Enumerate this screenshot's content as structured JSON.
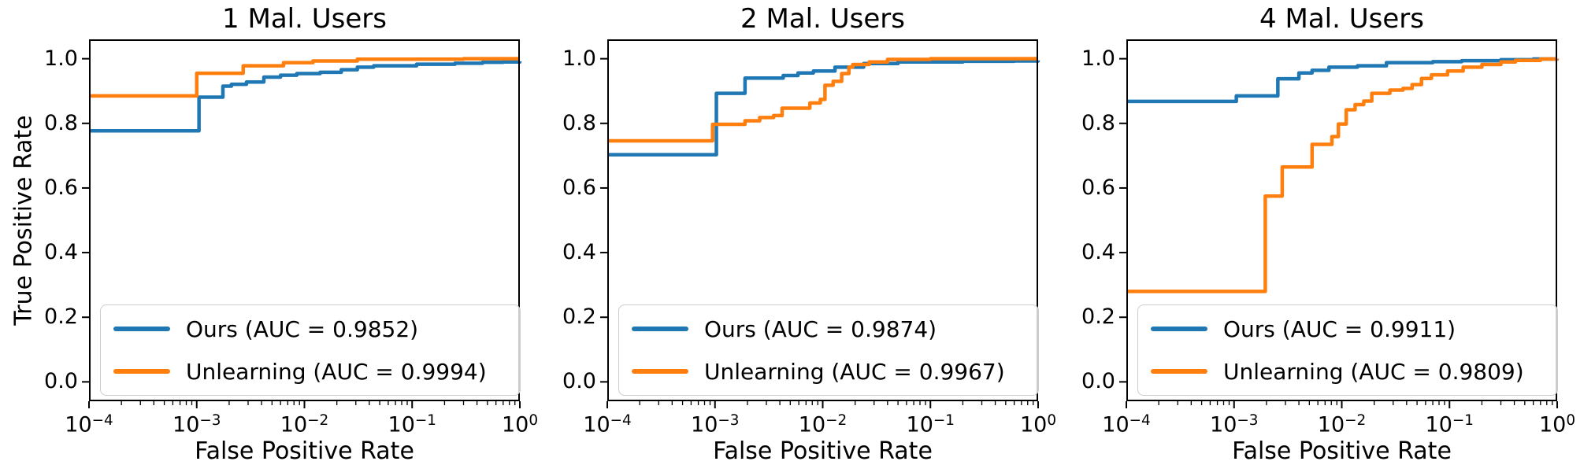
{
  "figure": {
    "ylabel": "True Positive Rate",
    "background_color": "#ffffff",
    "text_color": "#000000",
    "accent_colors": {
      "ours": "#1f77b4",
      "unlearning": "#ff7f0e"
    }
  },
  "chart_data": [
    {
      "type": "line",
      "title": "1 Mal. Users",
      "xlabel": "False Positive Rate",
      "ylabel": "True Positive Rate",
      "xscale": "log",
      "xlim": [
        0.0001,
        1.0
      ],
      "ylim": [
        -0.06,
        1.06
      ],
      "xtick_labels": [
        "10^-4",
        "10^-3",
        "10^-2",
        "10^-1",
        "10^0"
      ],
      "ytick_labels": [
        "1.0",
        "0.8",
        "0.6",
        "0.4",
        "0.2",
        "0.0"
      ],
      "grid": false,
      "legend_position": "lower left",
      "series": [
        {
          "name": "Ours (AUC = 0.9852)",
          "auc": 0.9852,
          "color": "#1f77b4",
          "points": [
            [
              0.0001,
              0.777
            ],
            [
              0.00105,
              0.881
            ],
            [
              0.00175,
              0.915
            ],
            [
              0.0021,
              0.921
            ],
            [
              0.0029,
              0.928
            ],
            [
              0.0042,
              0.943
            ],
            [
              0.006,
              0.949
            ],
            [
              0.0085,
              0.954
            ],
            [
              0.014,
              0.958
            ],
            [
              0.022,
              0.966
            ],
            [
              0.031,
              0.974
            ],
            [
              0.044,
              0.978
            ],
            [
              0.11,
              0.983
            ],
            [
              0.25,
              0.986
            ],
            [
              0.45,
              0.989
            ],
            [
              0.7,
              0.99
            ],
            [
              1.0,
              0.992
            ]
          ]
        },
        {
          "name": "Unlearning (AUC = 0.9994)",
          "auc": 0.9994,
          "color": "#ff7f0e",
          "points": [
            [
              0.0001,
              0.885
            ],
            [
              0.001,
              0.955
            ],
            [
              0.0027,
              0.978
            ],
            [
              0.0064,
              0.988
            ],
            [
              0.012,
              0.993
            ],
            [
              0.031,
              0.9985
            ],
            [
              0.3,
              1.0
            ],
            [
              1.0,
              1.0
            ]
          ]
        }
      ]
    },
    {
      "type": "line",
      "title": "2 Mal. Users",
      "xlabel": "False Positive Rate",
      "ylabel": "",
      "xscale": "log",
      "xlim": [
        0.0001,
        1.0
      ],
      "ylim": [
        -0.06,
        1.06
      ],
      "xtick_labels": [
        "10^-4",
        "10^-3",
        "10^-2",
        "10^-1",
        "10^0"
      ],
      "ytick_labels": [
        "1.0",
        "0.8",
        "0.6",
        "0.4",
        "0.2",
        "0.0"
      ],
      "grid": false,
      "legend_position": "lower left",
      "series": [
        {
          "name": "Ours (AUC = 0.9874)",
          "auc": 0.9874,
          "color": "#1f77b4",
          "points": [
            [
              0.0001,
              0.703
            ],
            [
              0.00103,
              0.893
            ],
            [
              0.0019,
              0.94
            ],
            [
              0.0043,
              0.948
            ],
            [
              0.0059,
              0.956
            ],
            [
              0.0082,
              0.962
            ],
            [
              0.013,
              0.974
            ],
            [
              0.024,
              0.985
            ],
            [
              0.05,
              0.99
            ],
            [
              0.2,
              0.992
            ],
            [
              0.6,
              0.993
            ],
            [
              1.0,
              0.995
            ]
          ]
        },
        {
          "name": "Unlearning (AUC = 0.9967)",
          "auc": 0.9967,
          "color": "#ff7f0e",
          "points": [
            [
              0.0001,
              0.746
            ],
            [
              0.00095,
              0.797
            ],
            [
              0.0019,
              0.808
            ],
            [
              0.0026,
              0.818
            ],
            [
              0.0035,
              0.824
            ],
            [
              0.0042,
              0.847
            ],
            [
              0.0076,
              0.863
            ],
            [
              0.0095,
              0.874
            ],
            [
              0.0105,
              0.918
            ],
            [
              0.0125,
              0.93
            ],
            [
              0.015,
              0.954
            ],
            [
              0.0175,
              0.974
            ],
            [
              0.019,
              0.982
            ],
            [
              0.027,
              0.99
            ],
            [
              0.04,
              0.998
            ],
            [
              0.1,
              1.0
            ],
            [
              1.0,
              1.0
            ]
          ]
        }
      ]
    },
    {
      "type": "line",
      "title": "4 Mal. Users",
      "xlabel": "False Positive Rate",
      "ylabel": "",
      "xscale": "log",
      "xlim": [
        0.0001,
        1.0
      ],
      "ylim": [
        -0.06,
        1.06
      ],
      "xtick_labels": [
        "10^-4",
        "10^-3",
        "10^-2",
        "10^-1",
        "10^0"
      ],
      "ytick_labels": [
        "1.0",
        "0.8",
        "0.6",
        "0.4",
        "0.2",
        "0.0"
      ],
      "grid": false,
      "legend_position": "lower left",
      "series": [
        {
          "name": "Ours (AUC = 0.9911)",
          "auc": 0.9911,
          "color": "#1f77b4",
          "points": [
            [
              0.0001,
              0.868
            ],
            [
              0.00105,
              0.885
            ],
            [
              0.00255,
              0.938
            ],
            [
              0.004,
              0.956
            ],
            [
              0.0053,
              0.964
            ],
            [
              0.0076,
              0.974
            ],
            [
              0.014,
              0.978
            ],
            [
              0.026,
              0.988
            ],
            [
              0.07,
              0.991
            ],
            [
              0.13,
              0.994
            ],
            [
              0.3,
              0.997
            ],
            [
              0.6,
              0.999
            ],
            [
              1.0,
              1.0
            ]
          ]
        },
        {
          "name": "Unlearning (AUC = 0.9809)",
          "auc": 0.9809,
          "color": "#ff7f0e",
          "points": [
            [
              0.0001,
              0.28
            ],
            [
              0.00195,
              0.575
            ],
            [
              0.0028,
              0.665
            ],
            [
              0.0053,
              0.735
            ],
            [
              0.0081,
              0.759
            ],
            [
              0.0093,
              0.798
            ],
            [
              0.011,
              0.842
            ],
            [
              0.0133,
              0.858
            ],
            [
              0.016,
              0.869
            ],
            [
              0.019,
              0.893
            ],
            [
              0.028,
              0.903
            ],
            [
              0.037,
              0.908
            ],
            [
              0.045,
              0.92
            ],
            [
              0.055,
              0.939
            ],
            [
              0.068,
              0.95
            ],
            [
              0.096,
              0.962
            ],
            [
              0.134,
              0.974
            ],
            [
              0.2,
              0.982
            ],
            [
              0.3,
              0.99
            ],
            [
              0.41,
              0.995
            ],
            [
              0.7,
              0.999
            ],
            [
              1.0,
              1.0
            ]
          ]
        }
      ]
    }
  ]
}
